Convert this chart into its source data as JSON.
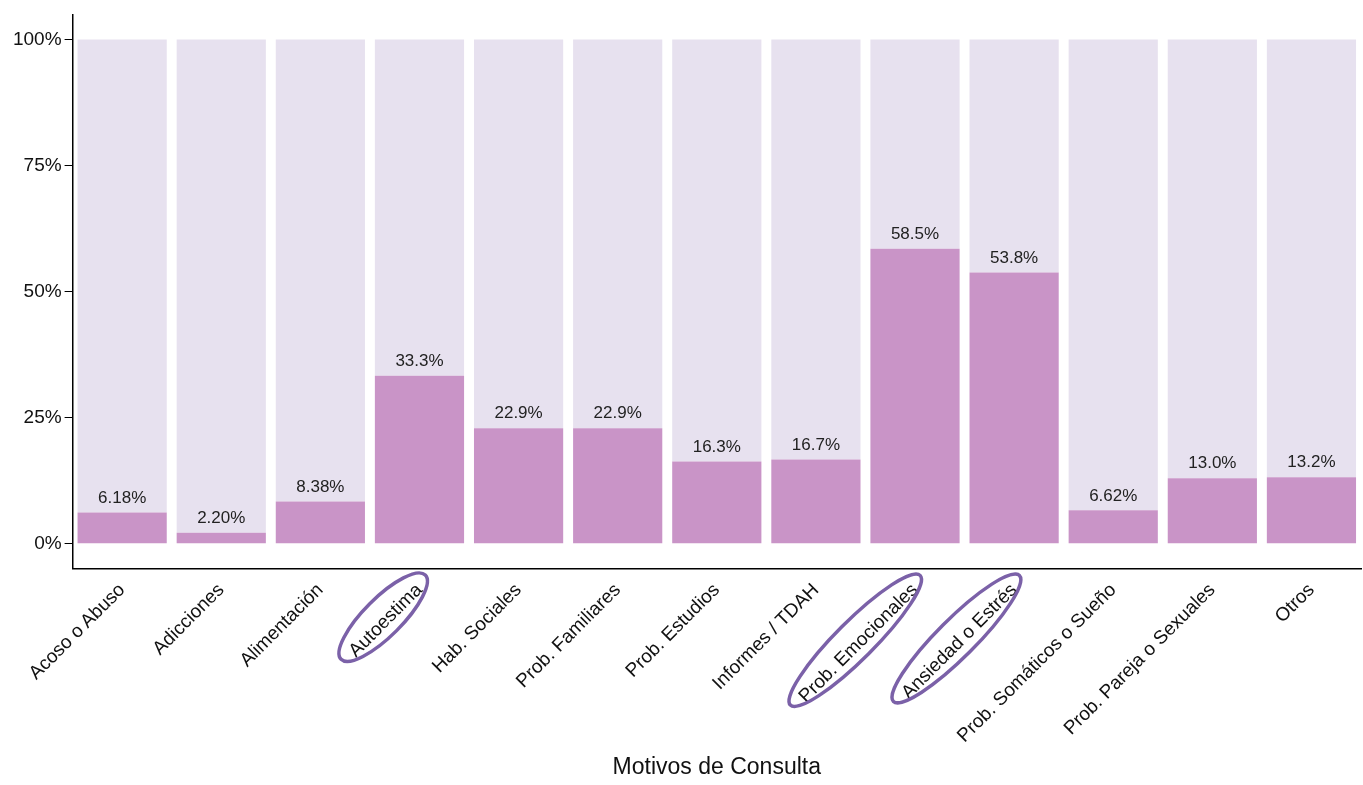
{
  "chart_data": {
    "type": "bar",
    "stacked": true,
    "xlabel": "Motivos de Consulta",
    "categories": [
      "Acoso o Abuso",
      "Adicciones",
      "Alimentación",
      "Autoestima",
      "Hab. Sociales",
      "Prob. Familiares",
      "Prob. Estudios",
      "Informes / TDAH",
      "Prob. Emocionales",
      "Ansiedad o Estrés",
      "Prob. Somáticos o Sueño",
      "Prob. Pareja o Sexuales",
      "Otros"
    ],
    "series": [
      {
        "color": "#c994c7",
        "values": [
          6.18,
          2.2,
          8.38,
          33.3,
          22.9,
          22.9,
          16.3,
          16.7,
          58.5,
          53.8,
          6.62,
          13.0,
          13.2
        ],
        "value_labels": [
          "6.18%",
          "2.20%",
          "8.38%",
          "33.3%",
          "22.9%",
          "22.9%",
          "16.3%",
          "16.7%",
          "58.5%",
          "53.8%",
          "6.62%",
          "13.0%",
          "13.2%"
        ]
      },
      {
        "color": "#e7e1ef",
        "values": [
          93.82,
          97.8,
          91.62,
          66.7,
          77.1,
          77.1,
          83.7,
          83.3,
          41.5,
          46.2,
          93.38,
          87.0,
          86.8
        ]
      }
    ],
    "ylim": [
      -5,
      105
    ],
    "yticks": [
      {
        "value": 0,
        "label": "0%"
      },
      {
        "value": 25,
        "label": "25%"
      },
      {
        "value": 50,
        "label": "50%"
      },
      {
        "value": 75,
        "label": "75%"
      },
      {
        "value": 100,
        "label": "100%"
      }
    ],
    "grid": false,
    "legend": false
  }
}
